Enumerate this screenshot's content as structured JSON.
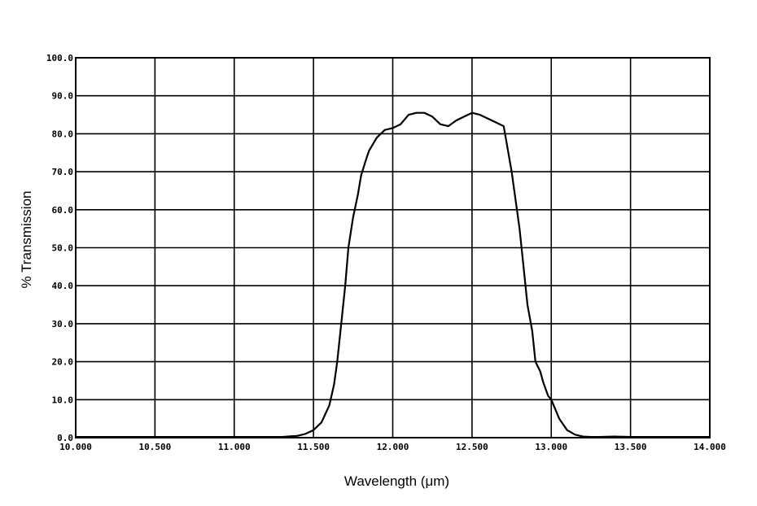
{
  "chart_data": {
    "type": "line",
    "title": "",
    "xlabel": "Wavelength (μm)",
    "ylabel": "% Transmission",
    "xlim": [
      10.0,
      14.0
    ],
    "ylim": [
      0.0,
      100.0
    ],
    "xticks": [
      10.0,
      10.5,
      11.0,
      11.5,
      12.0,
      12.5,
      13.0,
      13.5,
      14.0
    ],
    "xtick_labels": [
      "10.000",
      "10.500",
      "11.000",
      "11.500",
      "12.000",
      "12.500",
      "13.000",
      "13.500",
      "14.000"
    ],
    "yticks": [
      0,
      10,
      20,
      30,
      40,
      50,
      60,
      70,
      80,
      90,
      100
    ],
    "ytick_labels": [
      "0.0",
      "10.0",
      "20.0",
      "30.0",
      "40.0",
      "50.0",
      "60.0",
      "70.0",
      "80.0",
      "90.0",
      "100.0"
    ],
    "grid": true,
    "line_color": "#000000",
    "series": [
      {
        "x": [
          10.0,
          10.5,
          11.0,
          11.3,
          11.4,
          11.45,
          11.5,
          11.55,
          11.6,
          11.63,
          11.65,
          11.68,
          11.7,
          11.72,
          11.75,
          11.78,
          11.8,
          11.83,
          11.85,
          11.9,
          11.95,
          12.0,
          12.05,
          12.1,
          12.15,
          12.2,
          12.25,
          12.3,
          12.35,
          12.4,
          12.45,
          12.5,
          12.55,
          12.6,
          12.65,
          12.7,
          12.75,
          12.8,
          12.82,
          12.85,
          12.88,
          12.9,
          12.93,
          12.95,
          12.98,
          13.0,
          13.05,
          13.1,
          13.15,
          13.2,
          13.25,
          13.3,
          13.4,
          13.5,
          14.0
        ],
        "y": [
          0.2,
          0.2,
          0.2,
          0.2,
          0.5,
          1.0,
          2.0,
          4.0,
          8.5,
          14.0,
          20.0,
          32.0,
          40.0,
          50.0,
          58.0,
          64.0,
          69.0,
          73.0,
          75.5,
          79.0,
          81.0,
          81.5,
          82.5,
          85.0,
          85.5,
          85.5,
          84.5,
          82.5,
          82.0,
          83.5,
          84.5,
          85.5,
          85.0,
          84.0,
          83.0,
          82.0,
          70.0,
          55.0,
          47.0,
          35.0,
          28.0,
          20.0,
          17.5,
          14.5,
          11.0,
          10.0,
          5.0,
          2.0,
          0.8,
          0.3,
          0.2,
          0.2,
          0.3,
          0.2,
          0.2
        ]
      }
    ]
  }
}
